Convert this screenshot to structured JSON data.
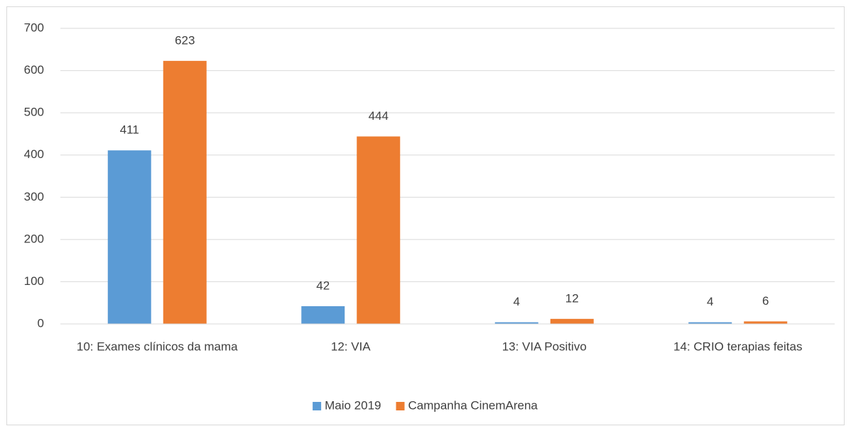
{
  "chart_data": {
    "type": "bar",
    "categories": [
      "10: Exames clínicos da mama",
      "12: VIA",
      "13: VIA Positivo",
      "14: CRIO terapias feitas"
    ],
    "series": [
      {
        "name": "Maio 2019",
        "color": "#5b9bd5",
        "values": [
          411,
          42,
          4,
          4
        ]
      },
      {
        "name": "Campanha CinemArena",
        "color": "#ed7d31",
        "values": [
          623,
          444,
          12,
          6
        ]
      }
    ],
    "ylim": [
      0,
      700
    ],
    "yticks": [
      0,
      100,
      200,
      300,
      400,
      500,
      600,
      700
    ],
    "grid": true,
    "legend": "bottom"
  }
}
